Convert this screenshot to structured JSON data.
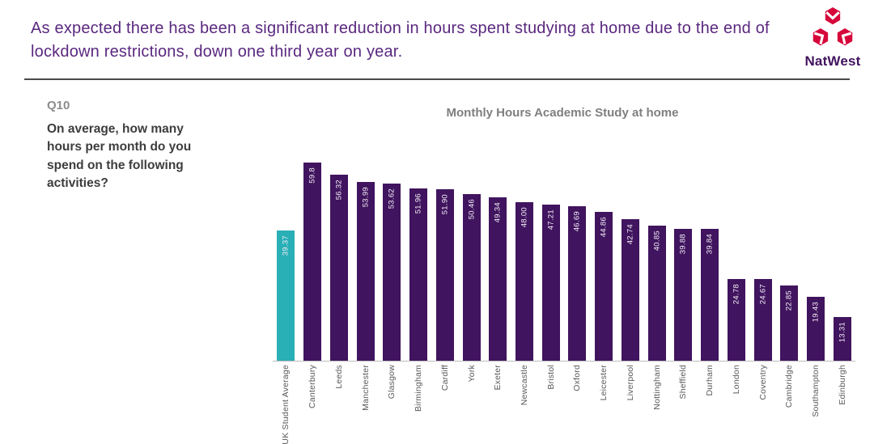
{
  "header": {
    "headline": "As expected there has been a significant reduction in hours spent studying at home due to the end of lockdown restrictions, down one third year on year.",
    "brand_name": "NatWest",
    "brand_colors": {
      "logo_red": "#d6083b",
      "brand_purple": "#42145f",
      "headline_purple": "#5a287f"
    }
  },
  "question": {
    "id": "Q10",
    "text": "On average, how many hours per month do you spend on the following activities?"
  },
  "chart_data": {
    "type": "bar",
    "title": "Monthly Hours Academic Study at home",
    "xlabel": "",
    "ylabel": "",
    "ylim": [
      0,
      65
    ],
    "grid": false,
    "legend": false,
    "categories": [
      "UK Student Average",
      "Canterbury",
      "Leeds",
      "Manchester",
      "Glasgow",
      "Birmingham",
      "Cardiff",
      "York",
      "Exeter",
      "Newcastle",
      "Bristol",
      "Oxford",
      "Leicester",
      "Liverpool",
      "Nottingham",
      "Sheffield",
      "Durham",
      "London",
      "Coventry",
      "Cambridge",
      "Southampton",
      "Edinburgh"
    ],
    "values": [
      39.37,
      59.8,
      56.32,
      53.99,
      53.62,
      51.96,
      51.9,
      50.46,
      49.34,
      48.0,
      47.21,
      46.69,
      44.86,
      42.74,
      40.85,
      39.88,
      39.84,
      24.78,
      24.67,
      22.85,
      19.43,
      13.31
    ],
    "value_labels": [
      "39.37",
      "59.8",
      "56.32",
      "53.99",
      "53.62",
      "51.96",
      "51.90",
      "50.46",
      "49.34",
      "48.00",
      "47.21",
      "46.69",
      "44.86",
      "42.74",
      "40.85",
      "39.88",
      "39.84",
      "24.78",
      "24.67",
      "22.85",
      "19.43",
      "13.31"
    ],
    "highlight_category": "UK Student Average",
    "colors": {
      "default": "#40145e",
      "highlight": "#29afb6"
    },
    "value_label_position": "inside-top-rotated",
    "category_label_rotation": "vertical-bottom-to-top"
  }
}
